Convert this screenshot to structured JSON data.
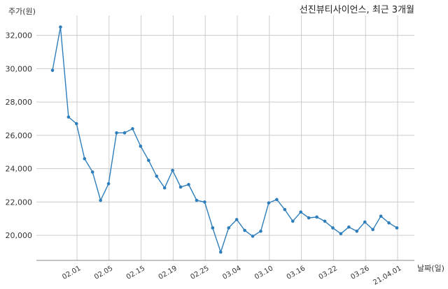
{
  "chart_data": {
    "type": "line",
    "title": "선진뷰티사이언스, 최근 3개월",
    "ylabel": "주가(원)",
    "xlabel": "날짜(일)",
    "ylim": [
      18500,
      33200
    ],
    "yticks": [
      20000,
      22000,
      24000,
      26000,
      28000,
      30000,
      32000
    ],
    "ytick_labels": [
      "20,000",
      "22,000",
      "24,000",
      "26,000",
      "28,000",
      "30,000",
      "32,000"
    ],
    "xticks": [
      "02.01",
      "02.05",
      "02.15",
      "02.19",
      "02.25",
      "03.04",
      "03.10",
      "03.16",
      "03.22",
      "03.26",
      "21.04.01"
    ],
    "grid": true,
    "color": "#2e7ebb",
    "values": [
      29900,
      32500,
      27100,
      26700,
      24600,
      23800,
      22100,
      23100,
      26150,
      26150,
      26400,
      25350,
      24500,
      23550,
      22850,
      23900,
      22900,
      23050,
      22100,
      22000,
      20450,
      19000,
      20450,
      20950,
      20300,
      19950,
      20250,
      21950,
      22150,
      21550,
      20850,
      21400,
      21050,
      21100,
      20850,
      20450,
      20100,
      20500,
      20250,
      20800,
      20350,
      21150,
      20750,
      20450
    ]
  }
}
